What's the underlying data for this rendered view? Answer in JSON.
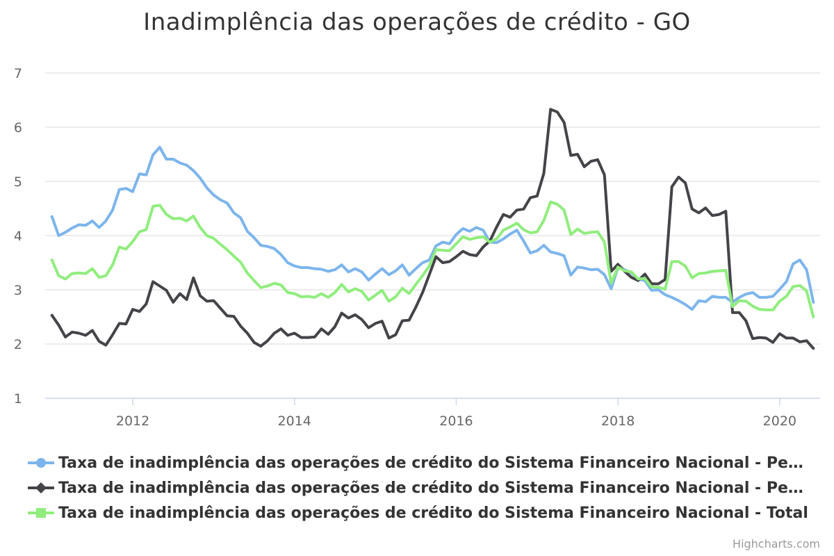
{
  "credits": "Highcharts.com",
  "chart_data": {
    "type": "line",
    "title": "Inadimplência das operações de crédito - GO",
    "xlabel": "",
    "ylabel": "",
    "ylim": [
      1,
      7
    ],
    "y_ticks": [
      1,
      2,
      3,
      4,
      5,
      6,
      7
    ],
    "x_ticks": [
      "2012",
      "2014",
      "2016",
      "2018",
      "2020"
    ],
    "x_start": "2011-01",
    "x_frequency": "monthly",
    "x_end": "2020-06",
    "grid": true,
    "legend_position": "bottom",
    "series": [
      {
        "name": "Taxa de inadimplência das operações de crédito do Sistema Financeiro Nacional - Pess...",
        "color": "#7cb5ec",
        "marker": "circle",
        "values": [
          4.35,
          4.0,
          4.06,
          4.14,
          4.2,
          4.19,
          4.27,
          4.15,
          4.27,
          4.47,
          4.85,
          4.87,
          4.81,
          5.14,
          5.12,
          5.49,
          5.63,
          5.41,
          5.41,
          5.34,
          5.3,
          5.2,
          5.06,
          4.88,
          4.75,
          4.66,
          4.6,
          4.42,
          4.33,
          4.08,
          3.96,
          3.82,
          3.8,
          3.76,
          3.65,
          3.5,
          3.44,
          3.41,
          3.41,
          3.39,
          3.38,
          3.34,
          3.37,
          3.46,
          3.33,
          3.39,
          3.33,
          3.18,
          3.29,
          3.39,
          3.28,
          3.35,
          3.46,
          3.27,
          3.39,
          3.5,
          3.55,
          3.81,
          3.88,
          3.85,
          4.02,
          4.13,
          4.08,
          4.15,
          4.1,
          3.88,
          3.87,
          3.94,
          4.03,
          4.1,
          3.9,
          3.68,
          3.72,
          3.82,
          3.7,
          3.67,
          3.63,
          3.27,
          3.42,
          3.4,
          3.37,
          3.38,
          3.28,
          3.02,
          3.41,
          3.37,
          3.31,
          3.2,
          3.17,
          2.99,
          3.0,
          2.91,
          2.86,
          2.8,
          2.73,
          2.64,
          2.8,
          2.78,
          2.88,
          2.86,
          2.86,
          2.77,
          2.86,
          2.92,
          2.95,
          2.86,
          2.86,
          2.88,
          3.01,
          3.15,
          3.48,
          3.55,
          3.37,
          2.77
        ]
      },
      {
        "name": "Taxa de inadimplência das operações de crédito do Sistema Financeiro Nacional - Pess...",
        "color": "#434348",
        "marker": "diamond",
        "values": [
          2.53,
          2.35,
          2.13,
          2.22,
          2.2,
          2.16,
          2.25,
          2.05,
          1.98,
          2.17,
          2.38,
          2.37,
          2.64,
          2.6,
          2.74,
          3.15,
          3.07,
          2.99,
          2.77,
          2.93,
          2.82,
          3.22,
          2.89,
          2.79,
          2.8,
          2.66,
          2.52,
          2.51,
          2.33,
          2.2,
          2.03,
          1.96,
          2.06,
          2.2,
          2.28,
          2.16,
          2.2,
          2.12,
          2.12,
          2.13,
          2.28,
          2.18,
          2.32,
          2.57,
          2.48,
          2.54,
          2.45,
          2.3,
          2.38,
          2.42,
          2.11,
          2.17,
          2.43,
          2.44,
          2.68,
          2.95,
          3.28,
          3.61,
          3.5,
          3.52,
          3.61,
          3.71,
          3.65,
          3.63,
          3.79,
          3.9,
          4.16,
          4.39,
          4.34,
          4.47,
          4.49,
          4.7,
          4.73,
          5.15,
          6.33,
          6.28,
          6.09,
          5.48,
          5.5,
          5.27,
          5.37,
          5.4,
          5.12,
          3.34,
          3.47,
          3.34,
          3.23,
          3.17,
          3.29,
          3.11,
          3.11,
          3.19,
          4.9,
          5.08,
          4.97,
          4.49,
          4.42,
          4.51,
          4.37,
          4.39,
          4.45,
          2.58,
          2.58,
          2.43,
          2.1,
          2.12,
          2.11,
          2.03,
          2.19,
          2.11,
          2.11,
          2.04,
          2.06,
          1.92
        ]
      },
      {
        "name": "Taxa de inadimplência das operações de crédito do Sistema Financeiro Nacional - Total",
        "color": "#90ed7d",
        "marker": "square",
        "values": [
          3.55,
          3.26,
          3.2,
          3.3,
          3.31,
          3.3,
          3.39,
          3.23,
          3.26,
          3.46,
          3.79,
          3.75,
          3.89,
          4.07,
          4.11,
          4.54,
          4.56,
          4.39,
          4.31,
          4.32,
          4.27,
          4.36,
          4.15,
          4.0,
          3.95,
          3.84,
          3.74,
          3.62,
          3.51,
          3.31,
          3.17,
          3.04,
          3.07,
          3.12,
          3.09,
          2.95,
          2.93,
          2.87,
          2.88,
          2.86,
          2.93,
          2.86,
          2.95,
          3.1,
          2.96,
          3.02,
          2.97,
          2.81,
          2.9,
          2.99,
          2.79,
          2.87,
          3.03,
          2.93,
          3.1,
          3.26,
          3.44,
          3.74,
          3.73,
          3.72,
          3.85,
          3.98,
          3.93,
          3.96,
          3.98,
          3.88,
          3.94,
          4.1,
          4.16,
          4.23,
          4.11,
          4.05,
          4.07,
          4.28,
          4.62,
          4.58,
          4.47,
          4.02,
          4.12,
          4.04,
          4.06,
          4.07,
          3.88,
          3.12,
          3.42,
          3.35,
          3.33,
          3.2,
          3.21,
          3.05,
          3.05,
          3.01,
          3.52,
          3.52,
          3.44,
          3.22,
          3.3,
          3.31,
          3.34,
          3.35,
          3.36,
          2.69,
          2.8,
          2.79,
          2.7,
          2.64,
          2.63,
          2.63,
          2.79,
          2.88,
          3.06,
          3.08,
          2.98,
          2.5
        ]
      }
    ]
  }
}
